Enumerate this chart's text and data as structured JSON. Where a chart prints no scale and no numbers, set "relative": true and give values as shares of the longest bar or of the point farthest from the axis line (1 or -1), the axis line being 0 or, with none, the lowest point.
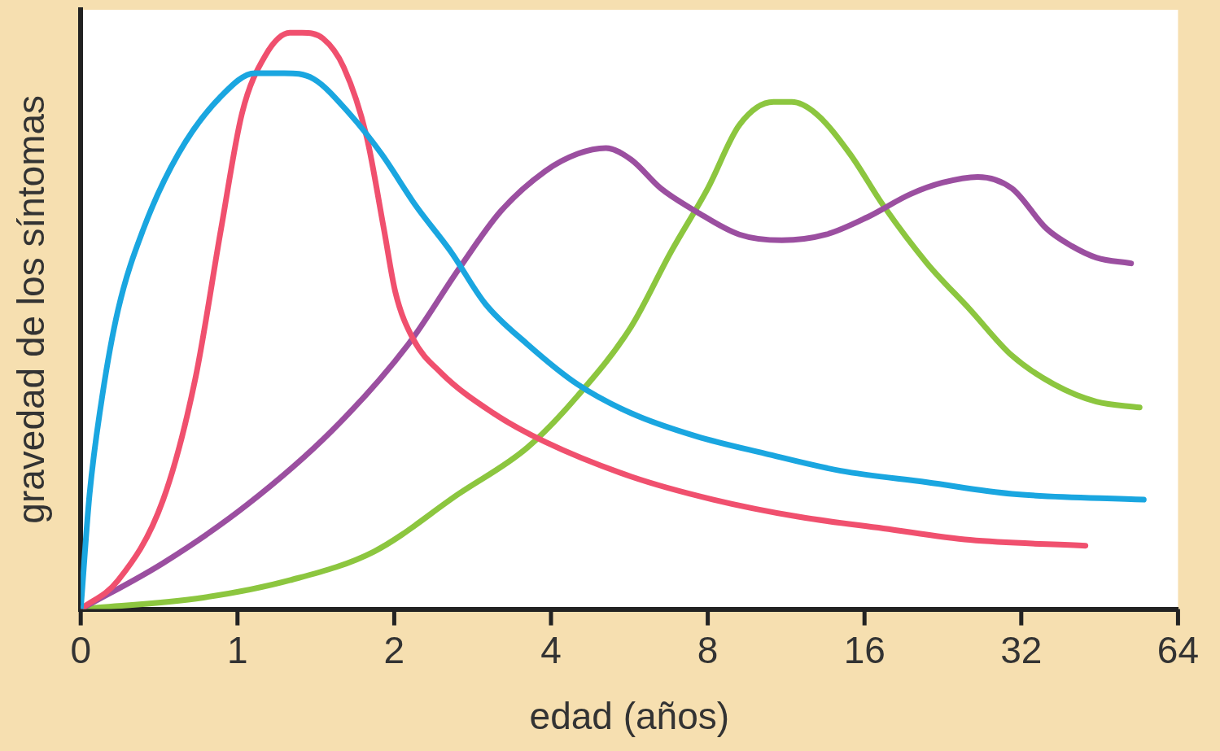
{
  "chart_data": {
    "type": "line",
    "relative": true,
    "log": "x",
    "xlabel": "edad (años)",
    "ylabel": "gravedad de los síntomas",
    "xlim": [
      0.5,
      64
    ],
    "xticks": [
      {
        "value": 0.5,
        "label": "0"
      },
      1,
      2,
      4,
      8,
      16,
      32,
      64
    ],
    "legend": false,
    "marker": "none",
    "line_style": "solid",
    "series": [
      {
        "color": "#1aa6e0",
        "x": [
          0.5,
          0.52,
          0.55,
          0.59,
          0.66,
          0.77,
          0.93,
          1.08,
          1.23,
          1.4,
          1.64,
          1.89,
          2.2,
          2.57,
          2.99,
          3.6,
          4.5,
          5.7,
          7.6,
          10.3,
          14.4,
          21.1,
          30.7,
          55
        ],
        "values": [
          0,
          0.2,
          0.37,
          0.52,
          0.66,
          0.79,
          0.89,
          0.93,
          0.93,
          0.92,
          0.86,
          0.79,
          0.7,
          0.62,
          0.53,
          0.46,
          0.39,
          0.34,
          0.3,
          0.27,
          0.24,
          0.22,
          0.2,
          0.19
        ]
      },
      {
        "color": "#f0506e",
        "x": [
          0.5,
          0.59,
          0.72,
          0.83,
          0.93,
          1.02,
          1.13,
          1.26,
          1.33,
          1.46,
          1.6,
          1.77,
          1.91,
          2.01,
          2.17,
          2.46,
          3.1,
          3.9,
          5.7,
          8.2,
          12.0,
          17.4,
          25.5,
          42.5
        ],
        "values": [
          0,
          0.05,
          0.19,
          0.4,
          0.66,
          0.86,
          0.96,
          1.0,
          1.0,
          0.99,
          0.94,
          0.82,
          0.66,
          0.55,
          0.47,
          0.41,
          0.34,
          0.29,
          0.23,
          0.19,
          0.16,
          0.14,
          0.12,
          0.11
        ]
      },
      {
        "color": "#9b4fa0",
        "x": [
          0.5,
          0.72,
          1.04,
          1.52,
          2.13,
          2.66,
          3.2,
          3.9,
          4.5,
          5.1,
          5.7,
          6.5,
          7.6,
          9.2,
          11.1,
          13.5,
          16.2,
          19.6,
          22.6,
          26.4,
          30.7,
          35.8,
          40,
          44.6,
          52
        ],
        "values": [
          0,
          0.08,
          0.18,
          0.31,
          0.46,
          0.59,
          0.69,
          0.76,
          0.79,
          0.8,
          0.78,
          0.73,
          0.69,
          0.65,
          0.64,
          0.65,
          0.68,
          0.72,
          0.74,
          0.75,
          0.73,
          0.66,
          0.63,
          0.61,
          0.6
        ]
      },
      {
        "color": "#8cc63f",
        "x": [
          0.5,
          0.86,
          1.26,
          1.83,
          2.66,
          3.6,
          4.5,
          5.7,
          6.8,
          8.0,
          9.2,
          10.7,
          11.6,
          12.9,
          15.0,
          17.4,
          21.1,
          25.5,
          30.7,
          37,
          44.6,
          54
        ],
        "values": [
          0,
          0.02,
          0.05,
          0.1,
          0.2,
          0.28,
          0.37,
          0.49,
          0.62,
          0.73,
          0.84,
          0.88,
          0.88,
          0.86,
          0.79,
          0.7,
          0.6,
          0.52,
          0.44,
          0.39,
          0.36,
          0.35
        ]
      }
    ]
  }
}
